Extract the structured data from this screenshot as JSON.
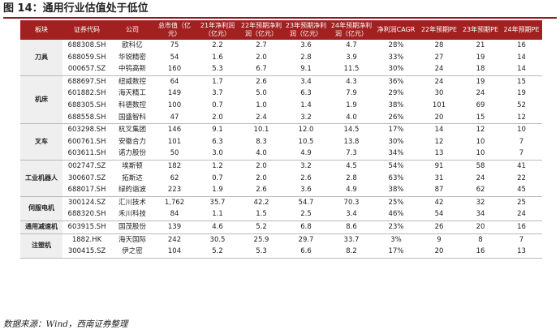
{
  "title": "图 14：通用行业估值处于低位",
  "source": "数据来源：Wind，西南证券整理",
  "table": {
    "headers": [
      "板块",
      "证券代码",
      "公司",
      "总市值（亿元）",
      "21年净利润（亿元）",
      "22年预期净利润（亿元）",
      "23年预期净利润（亿元）",
      "24年预期净利润（亿元）",
      "净利润CAGR",
      "22年预期PE",
      "23年预期PE",
      "24年预期PE"
    ],
    "groups": [
      {
        "sector": "刀具",
        "rows": [
          [
            "688308.SH",
            "欧科亿",
            "75",
            "2.2",
            "2.7",
            "3.6",
            "4.7",
            "28%",
            "28",
            "21",
            "16"
          ],
          [
            "688059.SH",
            "华锐精密",
            "54",
            "1.6",
            "2.0",
            "2.8",
            "3.9",
            "33%",
            "27",
            "19",
            "14"
          ],
          [
            "000657.SZ",
            "中钨高新",
            "160",
            "5.3",
            "6.7",
            "9.1",
            "11.5",
            "30%",
            "24",
            "18",
            "14"
          ]
        ]
      },
      {
        "sector": "机床",
        "rows": [
          [
            "688697.SH",
            "纽威数控",
            "64",
            "1.7",
            "2.6",
            "3.4",
            "4.3",
            "36%",
            "24",
            "19",
            "15"
          ],
          [
            "601882.SH",
            "海天精工",
            "149",
            "3.7",
            "5.0",
            "6.3",
            "7.9",
            "29%",
            "30",
            "24",
            "19"
          ],
          [
            "688305.SH",
            "科德数控",
            "100",
            "0.7",
            "1.0",
            "1.4",
            "1.9",
            "38%",
            "101",
            "69",
            "52"
          ],
          [
            "688558.SH",
            "国盛智科",
            "47",
            "2.0",
            "2.4",
            "3.2",
            "4.0",
            "26%",
            "20",
            "15",
            "12"
          ]
        ]
      },
      {
        "sector": "叉车",
        "rows": [
          [
            "603298.SH",
            "杭叉集团",
            "146",
            "9.1",
            "10.1",
            "12.0",
            "14.5",
            "17%",
            "14",
            "12",
            "10"
          ],
          [
            "600761.SH",
            "安徽合力",
            "101",
            "6.3",
            "8.3",
            "10.5",
            "13.8",
            "30%",
            "12",
            "10",
            "7"
          ],
          [
            "603611.SH",
            "诺力股份",
            "50",
            "3.0",
            "4.0",
            "4.9",
            "7.3",
            "34%",
            "13",
            "10",
            "7"
          ]
        ]
      },
      {
        "sector": "工业机器人",
        "rows": [
          [
            "002747.SZ",
            "埃斯顿",
            "182",
            "1.2",
            "2.0",
            "3.2",
            "4.5",
            "54%",
            "91",
            "58",
            "41"
          ],
          [
            "300607.SZ",
            "拓斯达",
            "62",
            "0.7",
            "2.0",
            "2.6",
            "2.8",
            "63%",
            "31",
            "24",
            "22"
          ],
          [
            "688017.SH",
            "绿的谐波",
            "223",
            "1.9",
            "2.6",
            "3.6",
            "4.9",
            "38%",
            "87",
            "62",
            "45"
          ]
        ]
      },
      {
        "sector": "伺服电机",
        "rows": [
          [
            "300124.SZ",
            "汇川技术",
            "1,762",
            "35.7",
            "42.2",
            "54.7",
            "70.3",
            "25%",
            "42",
            "32",
            "25"
          ],
          [
            "688320.SH",
            "禾川科技",
            "84",
            "1.1",
            "1.5",
            "2.5",
            "3.4",
            "46%",
            "54",
            "34",
            "24"
          ]
        ]
      },
      {
        "sector": "通用减速机",
        "rows": [
          [
            "603915.SH",
            "国茂股份",
            "139",
            "4.6",
            "5.2",
            "6.8",
            "8.6",
            "23%",
            "26",
            "20",
            "16"
          ]
        ]
      },
      {
        "sector": "注塑机",
        "rows": [
          [
            "1882.HK",
            "海天国际",
            "242",
            "30.5",
            "25.9",
            "29.7",
            "33.7",
            "3%",
            "9",
            "8",
            "7"
          ],
          [
            "300415.SZ",
            "伊之密",
            "104",
            "5.2",
            "5.3",
            "6.6",
            "8.2",
            "17%",
            "20",
            "16",
            "13"
          ]
        ]
      }
    ]
  }
}
